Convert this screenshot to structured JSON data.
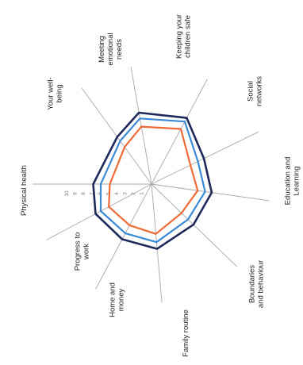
{
  "chart_data": {
    "type": "radar",
    "title": "",
    "axes": [
      {
        "label": [
          "Keeping your",
          "children safe"
        ]
      },
      {
        "label": [
          "Social",
          "networks"
        ]
      },
      {
        "label": [
          "Education and",
          "Learning"
        ]
      },
      {
        "label": [
          "Boundaries",
          "and behaviour"
        ]
      },
      {
        "label": [
          "Family routine"
        ]
      },
      {
        "label": [
          "Home and",
          "money"
        ]
      },
      {
        "label": [
          "Progress to",
          "work"
        ]
      },
      {
        "label": [
          "Physical health"
        ]
      },
      {
        "label": [
          "Your well-",
          "being"
        ]
      },
      {
        "label": [
          "Meeting",
          "emotional",
          "needs"
        ]
      }
    ],
    "rlim": [
      0,
      10
    ],
    "ticks": [
      1,
      2,
      3,
      4,
      5,
      6,
      7,
      8,
      9,
      10
    ],
    "tick_labels": [
      "1",
      "2",
      "3",
      "4",
      "5",
      "6",
      "7",
      "8",
      "9",
      "10"
    ],
    "series": [
      {
        "color": "#1f2a5c",
        "values": [
          9.0,
          7.0,
          7.3,
          7.0,
          7.8,
          7.5,
          7.6,
          7.0,
          7.0,
          8.7
        ]
      },
      {
        "color": "#3a8ad6",
        "values": [
          8.5,
          6.2,
          6.5,
          6.1,
          7.0,
          6.7,
          6.9,
          6.1,
          6.4,
          8.0
        ]
      },
      {
        "color": "#f06a35",
        "values": [
          7.5,
          5.2,
          5.6,
          5.0,
          6.0,
          5.6,
          5.8,
          5.0,
          5.5,
          7.0
        ]
      }
    ],
    "colors": {
      "spoke": "#a9a9a9",
      "tick_text": "#777777"
    }
  }
}
